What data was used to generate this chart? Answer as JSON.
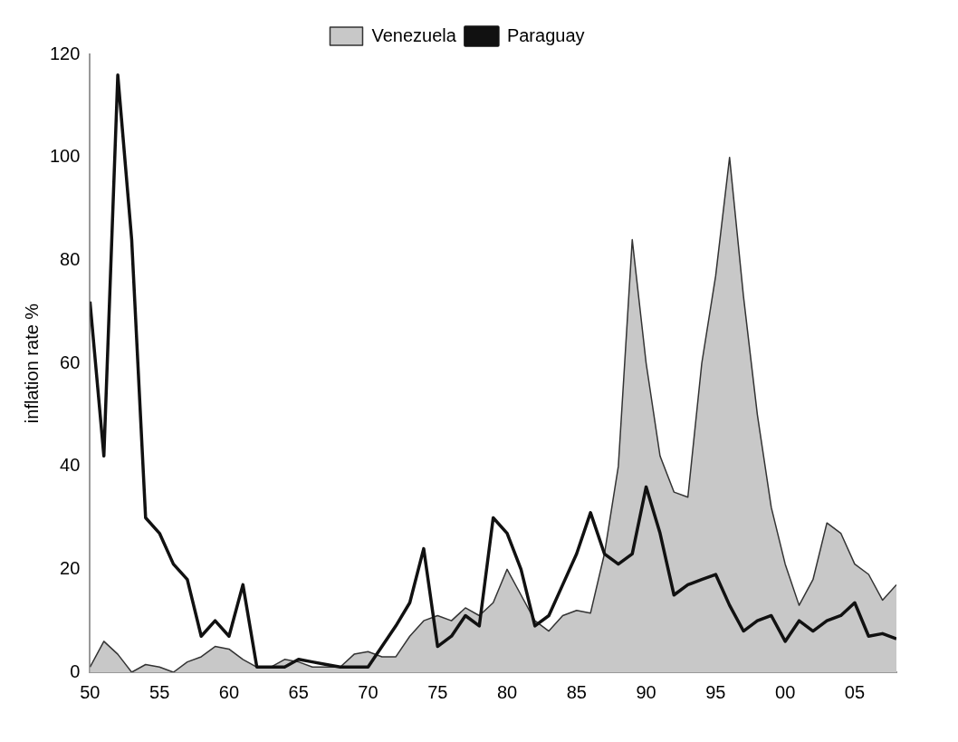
{
  "chart_data": {
    "type": "line",
    "ylabel": "inflation rate %",
    "x": [
      1950,
      1951,
      1952,
      1953,
      1954,
      1955,
      1956,
      1957,
      1958,
      1959,
      1960,
      1961,
      1962,
      1963,
      1964,
      1965,
      1966,
      1967,
      1968,
      1969,
      1970,
      1971,
      1972,
      1973,
      1974,
      1975,
      1976,
      1977,
      1978,
      1979,
      1980,
      1981,
      1982,
      1983,
      1984,
      1985,
      1986,
      1987,
      1988,
      1989,
      1990,
      1991,
      1992,
      1993,
      1994,
      1995,
      1996,
      1997,
      1998,
      1999,
      2000,
      2001,
      2002,
      2003,
      2004,
      2005,
      2006,
      2007,
      2008
    ],
    "series": [
      {
        "name": "Venezuela",
        "type": "area",
        "color": "#c8c8c8",
        "values": [
          1,
          6,
          3.5,
          0,
          1.5,
          1,
          0,
          2,
          3,
          5,
          4.5,
          2.5,
          1,
          1,
          2.5,
          2,
          1,
          1,
          1,
          3.5,
          4,
          3,
          3,
          7,
          10,
          11,
          10,
          12.5,
          11,
          13.5,
          20,
          15,
          10,
          8,
          11,
          12,
          11.5,
          23,
          40,
          84,
          60,
          42,
          35,
          34,
          60,
          77,
          100,
          73,
          50,
          32,
          21,
          13,
          18,
          29,
          27,
          21,
          19,
          14,
          17
        ]
      },
      {
        "name": "Paraguay",
        "type": "line",
        "color": "#111111",
        "values": [
          72,
          42,
          116,
          84,
          30,
          27,
          21,
          18,
          7,
          10,
          7,
          17,
          1,
          1,
          1,
          2.5,
          2,
          1.5,
          1,
          1,
          1,
          5,
          9,
          13.5,
          24,
          5,
          7,
          11,
          9,
          30,
          27,
          20,
          9,
          11,
          17,
          23,
          31,
          23,
          21,
          23,
          36,
          27,
          15,
          17,
          18,
          19,
          13,
          8,
          10,
          11,
          6,
          10,
          8,
          10,
          11,
          13.5,
          7,
          7.5,
          6.5
        ]
      }
    ],
    "xlim": [
      1950,
      2008
    ],
    "xticks": [
      {
        "value": 1950,
        "label": "50"
      },
      {
        "value": 1955,
        "label": "55"
      },
      {
        "value": 1960,
        "label": "60"
      },
      {
        "value": 1965,
        "label": "65"
      },
      {
        "value": 1970,
        "label": "70"
      },
      {
        "value": 1975,
        "label": "75"
      },
      {
        "value": 1980,
        "label": "80"
      },
      {
        "value": 1985,
        "label": "85"
      },
      {
        "value": 1990,
        "label": "90"
      },
      {
        "value": 1995,
        "label": "95"
      },
      {
        "value": 2000,
        "label": "00"
      },
      {
        "value": 2005,
        "label": "05"
      }
    ],
    "ylim": [
      0,
      120
    ],
    "yticks": [
      0,
      20,
      40,
      60,
      80,
      100,
      120
    ],
    "grid": false,
    "legend": "top",
    "marker": "none",
    "line_style": "solid"
  }
}
